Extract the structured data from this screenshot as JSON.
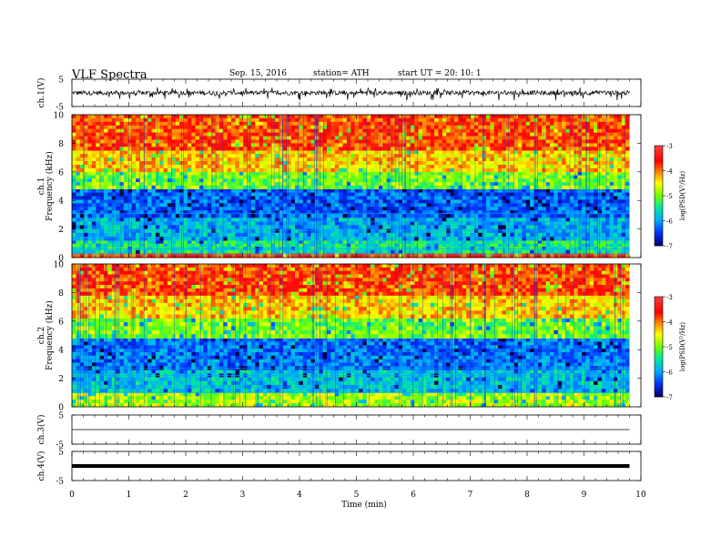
{
  "header": {
    "title": "VLF  Spectra",
    "date": "Sep. 15, 2016",
    "station": "station= ATH",
    "start": "start  UT  =   20: 10: 1"
  },
  "colorbar": {
    "label": "log(PSD(V²/Hz)",
    "ticks": [
      "-3",
      "-4",
      "-5",
      "-6",
      "-7"
    ],
    "stops": [
      "#ff9aa0",
      "#ff0000",
      "#ff8800",
      "#ffff00",
      "#66ff00",
      "#00e5b0",
      "#00aaff",
      "#0033ff",
      "#000088",
      "#000000"
    ]
  },
  "chart_data": [
    {
      "type": "line",
      "name": "ch1-waveform",
      "ylabel": "ch.1(V)",
      "ylim": [
        -5,
        5
      ],
      "yticks": [
        "5",
        "-5"
      ],
      "xlim": [
        0,
        10
      ],
      "trace_range": [
        0,
        9.8
      ],
      "amplitude_range": [
        -2.8,
        2.0
      ]
    },
    {
      "type": "heatmap",
      "name": "ch1-spectrogram",
      "ylabel_top": "ch.1",
      "ylabel": "Frequency  (kHz)",
      "ylim": [
        0,
        10
      ],
      "yticks": [
        "10",
        "8",
        "6",
        "4",
        "2",
        "0"
      ],
      "xlim": [
        0,
        10
      ],
      "data_range": [
        0,
        9.8
      ],
      "zlabel": "log(PSD(V²/Hz)",
      "zlim": [
        -7,
        -3
      ],
      "bands": [
        {
          "from": 0,
          "to": 0.3,
          "log_psd": -3.7
        },
        {
          "from": 0.3,
          "to": 1.2,
          "log_psd": -5.5
        },
        {
          "from": 1.2,
          "to": 2.8,
          "log_psd": -5.9
        },
        {
          "from": 2.8,
          "to": 4.8,
          "log_psd": -6.3
        },
        {
          "from": 4.8,
          "to": 6.0,
          "log_psd": -5.0
        },
        {
          "from": 6.0,
          "to": 7.5,
          "log_psd": -4.3
        },
        {
          "from": 7.5,
          "to": 10,
          "log_psd": -3.8
        }
      ]
    },
    {
      "type": "heatmap",
      "name": "ch2-spectrogram",
      "ylabel_top": "ch.2",
      "ylabel": "Frequency  (kHz)",
      "ylim": [
        0,
        10
      ],
      "yticks": [
        "10",
        "8",
        "6",
        "4",
        "2",
        "0"
      ],
      "xlim": [
        0,
        10
      ],
      "data_range": [
        0,
        9.8
      ],
      "zlabel": "log(PSD(V²/Hz)",
      "zlim": [
        -7,
        -3
      ],
      "bands": [
        {
          "from": 0,
          "to": 1.0,
          "log_psd": -4.8
        },
        {
          "from": 1.0,
          "to": 2.6,
          "log_psd": -5.8
        },
        {
          "from": 2.6,
          "to": 4.8,
          "log_psd": -6.2
        },
        {
          "from": 4.8,
          "to": 6.2,
          "log_psd": -5.0
        },
        {
          "from": 6.2,
          "to": 7.8,
          "log_psd": -4.3
        },
        {
          "from": 7.8,
          "to": 10,
          "log_psd": -3.8
        }
      ]
    },
    {
      "type": "line",
      "name": "ch3-waveform",
      "ylabel": "ch.3(V)",
      "ylim": [
        -5,
        5
      ],
      "yticks": [
        "5",
        "-5"
      ],
      "xlim": [
        0,
        10
      ],
      "trace_range": [
        0,
        9.8
      ],
      "level": 0
    },
    {
      "type": "line",
      "name": "ch4-waveform",
      "ylabel": "ch.4(V)",
      "ylim": [
        -5,
        5
      ],
      "yticks": [
        "5",
        "-5"
      ],
      "xlim": [
        0,
        10
      ],
      "trace_range": [
        0,
        9.8
      ],
      "level": 0,
      "xlabel": "Time  (min)",
      "xticks": [
        "0",
        "1",
        "2",
        "3",
        "4",
        "5",
        "6",
        "7",
        "8",
        "9",
        "10"
      ]
    }
  ]
}
